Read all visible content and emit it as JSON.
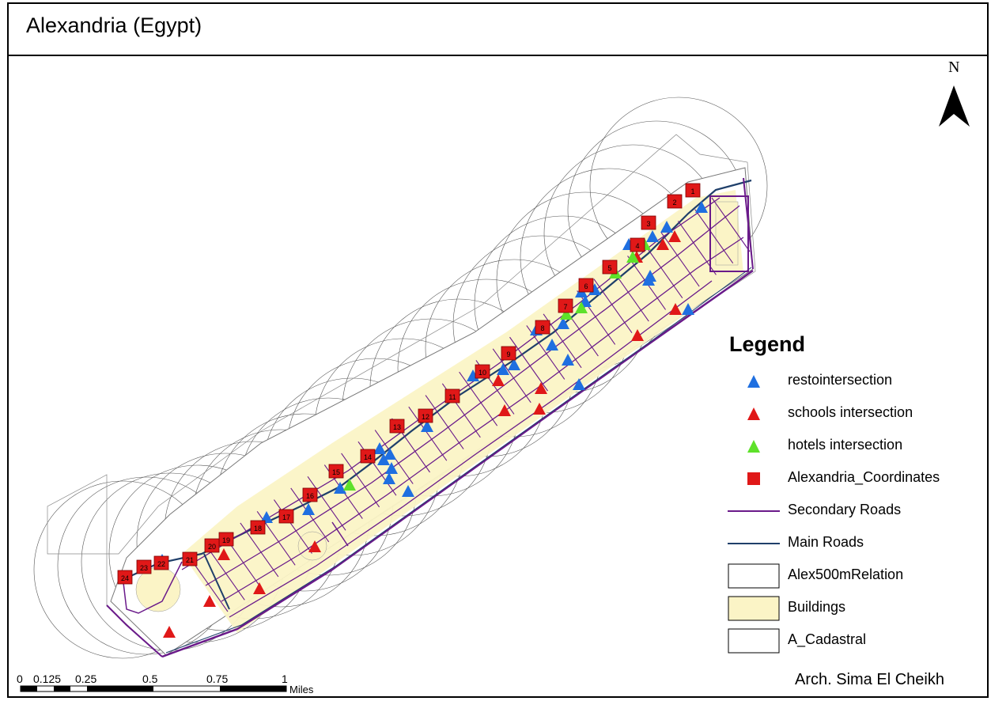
{
  "title": "Alexandria (Egypt)",
  "north_label": "N",
  "author": "Arch. Sima El Cheikh",
  "legend": {
    "title": "Legend",
    "items": [
      {
        "label": "restointersection",
        "symbol": "triangle",
        "color": "#1f6fe0"
      },
      {
        "label": "schools intersection",
        "symbol": "triangle",
        "color": "#e01818"
      },
      {
        "label": "hotels intersection",
        "symbol": "triangle",
        "color": "#5ee12a"
      },
      {
        "label": "Alexandria_Coordinates",
        "symbol": "square",
        "color": "#e01818"
      },
      {
        "label": "Secondary Roads",
        "symbol": "line",
        "color": "#6a1a8a"
      },
      {
        "label": "Main Roads",
        "symbol": "line",
        "color": "#1f3f6a"
      },
      {
        "label": "Alex500mRelation",
        "symbol": "box",
        "color": "#ffffff"
      },
      {
        "label": "Buildings",
        "symbol": "box",
        "color": "#fbf4c6"
      },
      {
        "label": "A_Cadastral",
        "symbol": "box",
        "color": "#ffffff"
      }
    ]
  },
  "scale_bar": {
    "labels": [
      "0",
      "0.125",
      "0.25",
      "0.5",
      "0.75",
      "1"
    ],
    "unit": "Miles"
  },
  "coordinate_markers": [
    "1",
    "2",
    "3",
    "4",
    "5",
    "6",
    "7",
    "8",
    "9",
    "10",
    "11",
    "12",
    "13",
    "14",
    "15",
    "16",
    "17",
    "18",
    "19",
    "20",
    "21",
    "22",
    "23",
    "24"
  ],
  "colors": {
    "resto": "#1f6fe0",
    "schools": "#e01818",
    "hotels": "#5ee12a",
    "marker": "#e01818",
    "secondary_road": "#6a1a8a",
    "main_road": "#1f3f6a",
    "building": "#fbf4c6"
  }
}
